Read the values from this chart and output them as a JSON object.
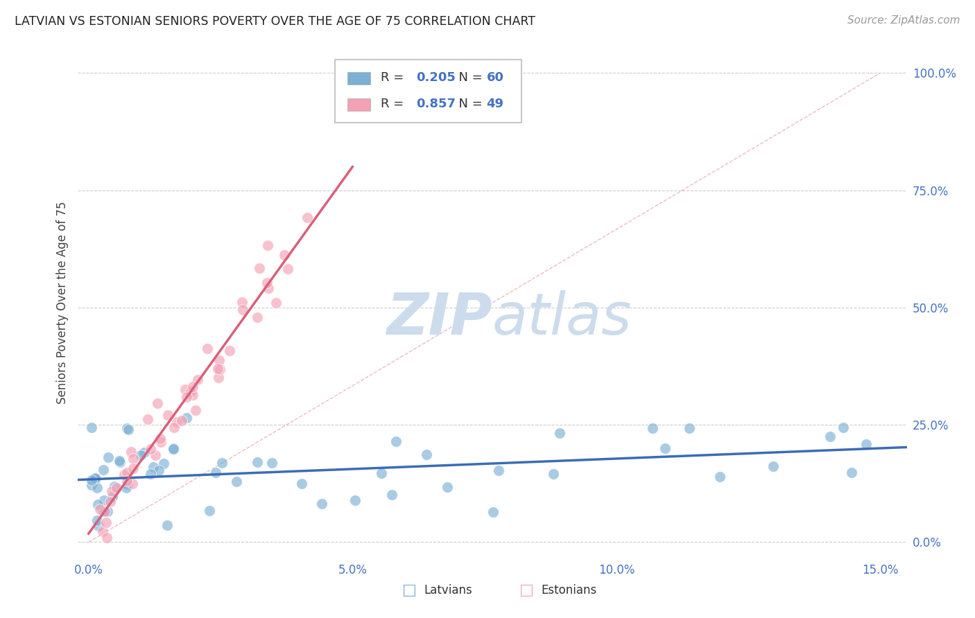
{
  "title": "LATVIAN VS ESTONIAN SENIORS POVERTY OVER THE AGE OF 75 CORRELATION CHART",
  "source_text": "Source: ZipAtlas.com",
  "ylabel": "Seniors Poverty Over the Age of 75",
  "xlim": [
    -0.002,
    0.155
  ],
  "ylim": [
    -0.03,
    1.05
  ],
  "xticks": [
    0.0,
    0.05,
    0.1,
    0.15
  ],
  "xticklabels": [
    "0.0%",
    "5.0%",
    "10.0%",
    "15.0%"
  ],
  "yticks_right": [
    0.0,
    0.25,
    0.5,
    0.75,
    1.0
  ],
  "yticklabels_right": [
    "0.0%",
    "25.0%",
    "50.0%",
    "75.0%",
    "100.0%"
  ],
  "latvian_R": 0.205,
  "latvian_N": 60,
  "estonian_R": 0.857,
  "estonian_N": 49,
  "latvian_color": "#7bafd4",
  "estonian_color": "#f4a0b5",
  "latvian_line_color": "#3b6cb7",
  "estonian_line_color": "#d9607a",
  "diagonal_color": "#e8b4bc",
  "background_color": "#ffffff",
  "grid_color": "#cccccc",
  "watermark_color": "#ccdcec",
  "tick_color": "#4472c4",
  "legend_text_color": "#4472c4"
}
